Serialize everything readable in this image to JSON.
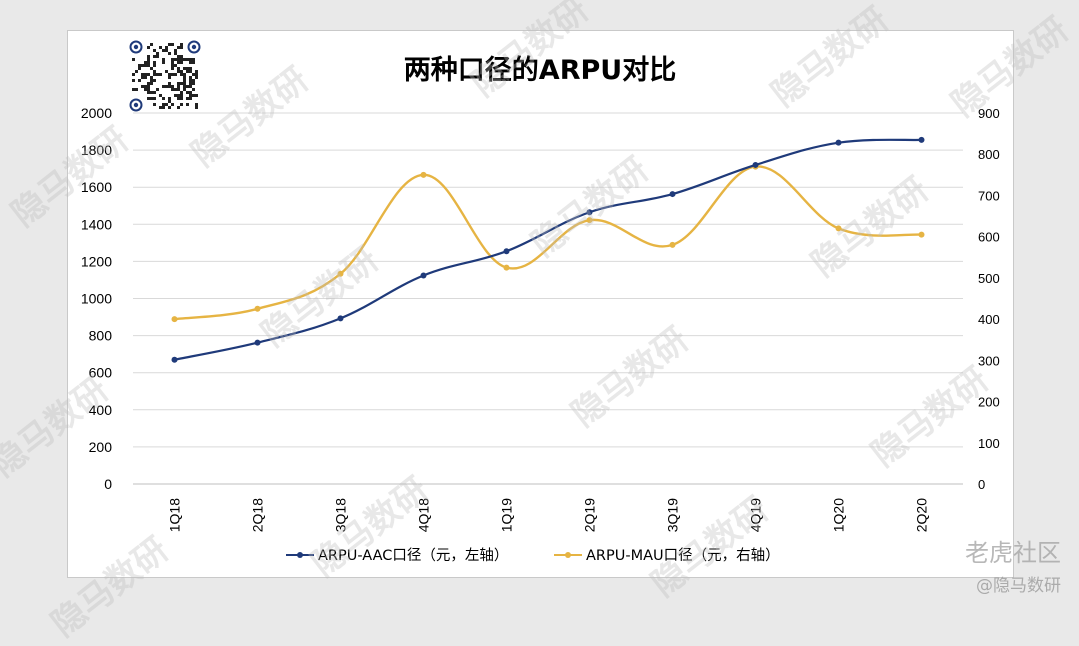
{
  "chart_data": {
    "type": "line",
    "title": "两种口径的ARPU对比",
    "categories": [
      "1Q18",
      "2Q18",
      "3Q18",
      "4Q18",
      "1Q19",
      "2Q19",
      "3Q19",
      "4Q19",
      "1Q20",
      "2Q20"
    ],
    "series": [
      {
        "name": "ARPU-AAC口径（元，左轴）",
        "axis": "left",
        "color": "#1f3a7a",
        "values": [
          670,
          762,
          893,
          1124,
          1255,
          1465,
          1563,
          1720,
          1840,
          1855
        ]
      },
      {
        "name": "ARPU-MAU口径（元，右轴）",
        "axis": "right",
        "color": "#e6b443",
        "values": [
          400,
          425,
          510,
          750,
          525,
          640,
          580,
          770,
          620,
          605
        ]
      }
    ],
    "y_left": {
      "range": [
        0,
        2000
      ],
      "ticks": [
        "0",
        "200",
        "400",
        "600",
        "800",
        "1000",
        "1200",
        "1400",
        "1600",
        "1800",
        "2000"
      ]
    },
    "y_right": {
      "range": [
        0,
        900
      ],
      "ticks": [
        "0",
        "100",
        "200",
        "300",
        "400",
        "500",
        "600",
        "700",
        "800",
        "900"
      ]
    },
    "grid": true,
    "legend_position": "bottom"
  },
  "watermark": "隐马数研",
  "corner_logo": "老虎社区",
  "corner_handle": "@隐马数研"
}
